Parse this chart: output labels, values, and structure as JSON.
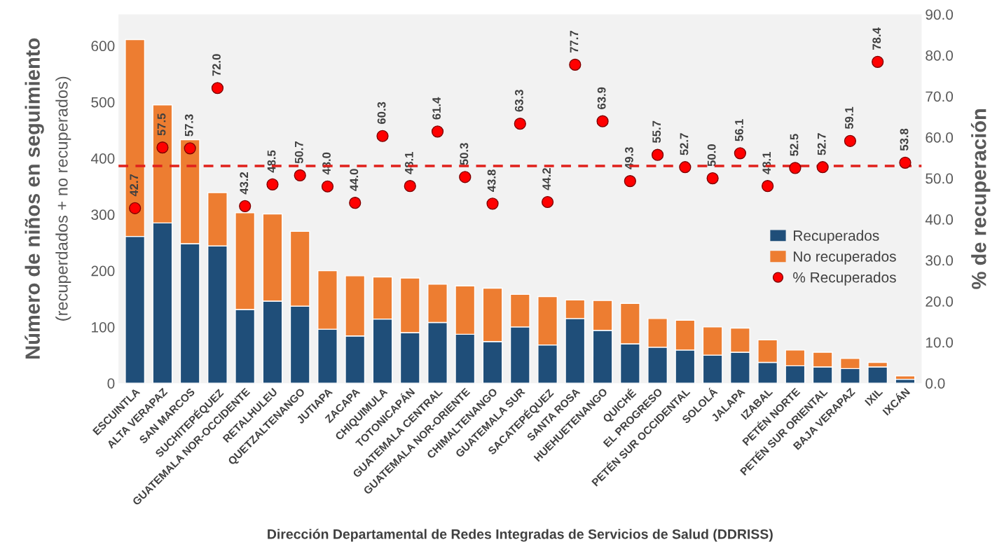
{
  "chart_data": {
    "type": "bar",
    "stacked": true,
    "xlabel": "Dirección Departamental de Redes Integradas de Servicios de Salud (DDRISS)",
    "ylabel": "Número de niños en seguimiento\n(recuperdados + no recuperados)",
    "y2label": "% de recuperación",
    "categories": [
      "ESCUINTLA",
      "ALTA VERAPAZ",
      "SAN MARCOS",
      "SUCHITEPÉQUEZ",
      "GUATEMALA NOR-OCCIDENTE",
      "RETALHULEU",
      "QUETZALTENANGO",
      "JUTIAPA",
      "ZACAPA",
      "CHIQUIMULA",
      "TOTONICAPÁN",
      "GUATEMALA CENTRAL",
      "GUATEMALA NOR-ORIENTE",
      "CHIMALTENANGO",
      "GUATEMALA SUR",
      "SACATEPÉQUEZ",
      "SANTA ROSA",
      "HUEHUETENANGO",
      "QUICHÉ",
      "EL PROGRESO",
      "PETÉN SUR OCCIDENTAL",
      "SOLOLÁ",
      "JALAPA",
      "IZABAL",
      "PETÉN NORTE",
      "PETÉN SUR ORIENTAL",
      "BAJA VERAPAZ",
      "IXIL",
      "IXCÁN"
    ],
    "series": [
      {
        "name": "Recuperados",
        "color": "#1f4e79",
        "values": [
          261,
          285,
          248,
          244,
          131,
          146,
          137,
          96,
          84,
          114,
          90,
          108,
          87,
          74,
          100,
          68,
          115,
          94,
          70,
          64,
          59,
          50,
          55,
          37,
          31,
          29,
          26,
          29,
          7
        ]
      },
      {
        "name": "No recuperados",
        "color": "#ed7d31",
        "values": [
          350,
          210,
          185,
          95,
          172,
          155,
          133,
          104,
          107,
          75,
          97,
          68,
          86,
          95,
          58,
          86,
          33,
          53,
          72,
          51,
          53,
          50,
          43,
          40,
          28,
          26,
          18,
          8,
          6
        ]
      },
      {
        "name": "% Recuperados",
        "type": "scatter",
        "axis": "y2",
        "color": "#ff0000",
        "marker": "circle",
        "values": [
          42.7,
          57.5,
          57.3,
          72.0,
          43.2,
          48.5,
          50.7,
          48.0,
          44.0,
          60.3,
          48.1,
          61.4,
          50.3,
          43.8,
          63.3,
          44.2,
          77.7,
          63.9,
          49.3,
          55.7,
          52.7,
          50.0,
          56.1,
          48.1,
          52.5,
          52.7,
          59.1,
          78.4,
          53.8
        ],
        "value_labels": [
          "42.7",
          "57.5",
          "57.3",
          "72.0",
          "43.2",
          "48.5",
          "50.7",
          "48.0",
          "44.0",
          "60.3",
          "48.1",
          "61.4",
          "50.3",
          "43.8",
          "63.3",
          "44.2",
          "77.7",
          "63.9",
          "49.3",
          "55.7",
          "52.7",
          "50.0",
          "56.1",
          "48.1",
          "52.5",
          "52.7",
          "59.1",
          "78.4",
          "53.8"
        ]
      }
    ],
    "ylim": [
      0,
      656
    ],
    "yticks": [
      0,
      100,
      200,
      300,
      400,
      500,
      600
    ],
    "y2lim": [
      0,
      90
    ],
    "y2ticks": [
      {
        "value": 0,
        "label": "0.0"
      },
      {
        "value": 10,
        "label": "10.0"
      },
      {
        "value": 20,
        "label": "20.0"
      },
      {
        "value": 30,
        "label": "30.0"
      },
      {
        "value": 40,
        "label": "40.0"
      },
      {
        "value": 50,
        "label": "50.0"
      },
      {
        "value": 60,
        "label": "60.0"
      },
      {
        "value": 70,
        "label": "70.0"
      },
      {
        "value": 80,
        "label": "80.0"
      },
      {
        "value": 90,
        "label": "90.0"
      }
    ],
    "ref_lines": [
      {
        "axis": "y2",
        "value": 53.0,
        "color": "#e0201b",
        "line_style": "dashed"
      }
    ],
    "grid": false,
    "legend": "right"
  }
}
